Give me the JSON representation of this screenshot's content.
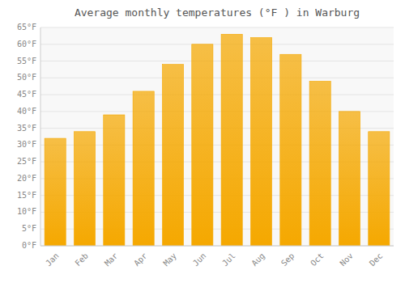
{
  "chart_data": {
    "type": "bar",
    "title": "Average monthly temperatures (°F ) in Warburg",
    "categories": [
      "Jan",
      "Feb",
      "Mar",
      "Apr",
      "May",
      "Jun",
      "Jul",
      "Aug",
      "Sep",
      "Oct",
      "Nov",
      "Dec"
    ],
    "values": [
      32,
      34,
      39,
      46,
      54,
      60,
      63,
      62,
      57,
      49,
      40,
      34
    ],
    "color": "#F5A800",
    "ylim": [
      0,
      65
    ],
    "yticks": [
      {
        "value": 0,
        "label": "0°F"
      },
      {
        "value": 5,
        "label": "5°F"
      },
      {
        "value": 10,
        "label": "10°F"
      },
      {
        "value": 15,
        "label": "15°F"
      },
      {
        "value": 20,
        "label": "20°F"
      },
      {
        "value": 25,
        "label": "25°F"
      },
      {
        "value": 30,
        "label": "30°F"
      },
      {
        "value": 35,
        "label": "35°F"
      },
      {
        "value": 40,
        "label": "40°F"
      },
      {
        "value": 45,
        "label": "45°F"
      },
      {
        "value": 50,
        "label": "50°F"
      },
      {
        "value": 55,
        "label": "55°F"
      },
      {
        "value": 60,
        "label": "60°F"
      },
      {
        "value": 65,
        "label": "65°F"
      }
    ],
    "grid": true
  }
}
